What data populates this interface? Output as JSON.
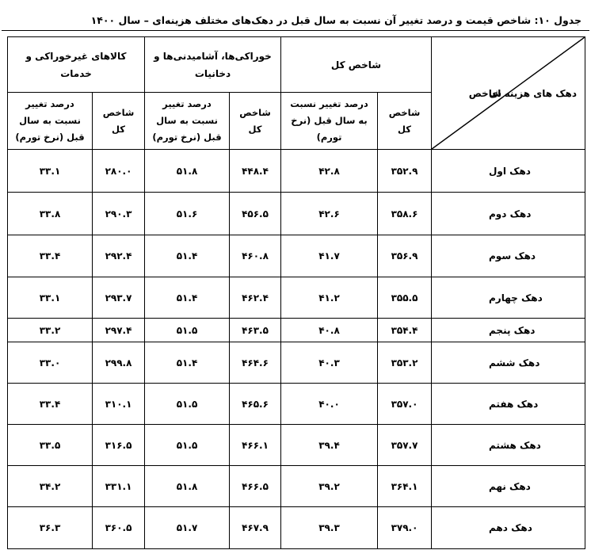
{
  "title": "جدول ۱۰: شاخص قیمت و درصد تغییر آن نسبت به سال قبل در دهک‌های مختلف هزینه‌ای – سال ۱۴۰۰",
  "corner": {
    "row_header": "دهک های هزینه ای",
    "col_header": "شاخص"
  },
  "groups": [
    "شاخص کل",
    "خوراکی‌ها، آشامیدنی‌ها و دخانیات",
    "کالاهای غیرخوراکی و خدمات"
  ],
  "subheaders": {
    "index": "شاخص کل",
    "change": "درصد تغییر نسبت به سال قبل (نرخ تورم)"
  },
  "rows": [
    {
      "label": "دهک اول",
      "total_index": "۳۵۲.۹",
      "total_change": "۴۲.۸",
      "food_index": "۴۴۸.۴",
      "food_change": "۵۱.۸",
      "nonfood_index": "۲۸۰.۰",
      "nonfood_change": "۳۳.۱"
    },
    {
      "label": "دهک دوم",
      "total_index": "۳۵۸.۶",
      "total_change": "۴۲.۶",
      "food_index": "۴۵۶.۵",
      "food_change": "۵۱.۶",
      "nonfood_index": "۲۹۰.۳",
      "nonfood_change": "۳۳.۸"
    },
    {
      "label": "دهک سوم",
      "total_index": "۳۵۶.۹",
      "total_change": "۴۱.۷",
      "food_index": "۴۶۰.۸",
      "food_change": "۵۱.۴",
      "nonfood_index": "۲۹۲.۴",
      "nonfood_change": "۳۳.۴"
    },
    {
      "label": "دهک چهارم",
      "total_index": "۳۵۵.۵",
      "total_change": "۴۱.۲",
      "food_index": "۴۶۲.۴",
      "food_change": "۵۱.۴",
      "nonfood_index": "۲۹۳.۷",
      "nonfood_change": "۳۳.۱"
    },
    {
      "label": "دهک پنجم",
      "total_index": "۳۵۴.۴",
      "total_change": "۴۰.۸",
      "food_index": "۴۶۳.۵",
      "food_change": "۵۱.۵",
      "nonfood_index": "۲۹۷.۴",
      "nonfood_change": "۳۳.۲"
    },
    {
      "label": "دهک ششم",
      "total_index": "۳۵۳.۲",
      "total_change": "۴۰.۳",
      "food_index": "۴۶۴.۶",
      "food_change": "۵۱.۴",
      "nonfood_index": "۲۹۹.۸",
      "nonfood_change": "۳۳.۰"
    },
    {
      "label": "دهک هفتم",
      "total_index": "۳۵۷.۰",
      "total_change": "۴۰.۰",
      "food_index": "۴۶۵.۶",
      "food_change": "۵۱.۵",
      "nonfood_index": "۳۱۰.۱",
      "nonfood_change": "۳۳.۴"
    },
    {
      "label": "دهک هشتم",
      "total_index": "۳۵۷.۷",
      "total_change": "۳۹.۴",
      "food_index": "۴۶۶.۱",
      "food_change": "۵۱.۵",
      "nonfood_index": "۳۱۶.۵",
      "nonfood_change": "۳۳.۵"
    },
    {
      "label": "دهک نهم",
      "total_index": "۳۶۴.۱",
      "total_change": "۳۹.۲",
      "food_index": "۴۶۶.۵",
      "food_change": "۵۱.۸",
      "nonfood_index": "۳۳۱.۱",
      "nonfood_change": "۳۴.۲"
    },
    {
      "label": "دهک دهم",
      "total_index": "۳۷۹.۰",
      "total_change": "۳۹.۳",
      "food_index": "۴۶۷.۹",
      "food_change": "۵۱.۷",
      "nonfood_index": "۳۶۰.۵",
      "nonfood_change": "۳۶.۳"
    }
  ]
}
